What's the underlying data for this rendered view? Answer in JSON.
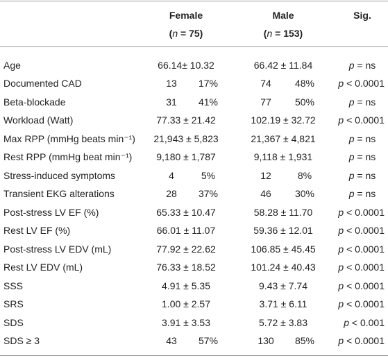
{
  "table": {
    "header": {
      "female": {
        "title": "Female",
        "n": [
          "(",
          "n",
          " = 75)"
        ]
      },
      "male": {
        "title": "Male",
        "n": [
          "(",
          "n",
          " = 153)"
        ]
      },
      "sig": "Sig."
    },
    "rows": [
      {
        "label": "Age",
        "female": [
          "66.14± 10.32"
        ],
        "male": [
          "66.42 ± 11.84"
        ],
        "sig": [
          "p",
          " = ns"
        ]
      },
      {
        "label": "Documented CAD",
        "female": [
          "13",
          "17%"
        ],
        "male": [
          "74",
          "48%"
        ],
        "sig": [
          "p",
          " < 0.0001"
        ]
      },
      {
        "label": "Beta-blockade",
        "female": [
          "31",
          "41%"
        ],
        "male": [
          "77",
          "50%"
        ],
        "sig": [
          "p",
          " = ns"
        ]
      },
      {
        "label": "Workload (Watt)",
        "female": [
          "77.33 ± 21.42"
        ],
        "male": [
          "102.19 ± 32.72"
        ],
        "sig": [
          "p",
          " < 0.0001"
        ]
      },
      {
        "label": "Max RPP (mmHg beats min⁻¹)",
        "female": [
          "21,943 ± 5,823"
        ],
        "male": [
          "21,367 ± 4,821"
        ],
        "sig": [
          "p",
          " = ns"
        ]
      },
      {
        "label": "Rest RPP (mmHg beat min⁻¹)",
        "female": [
          "9,180 ± 1,787"
        ],
        "male": [
          "9,118 ± 1,931"
        ],
        "sig": [
          "p",
          " = ns"
        ]
      },
      {
        "label": "Stress-induced symptoms",
        "female": [
          "4",
          "5%"
        ],
        "male": [
          "12",
          "8%"
        ],
        "sig": [
          "p",
          " = ns"
        ]
      },
      {
        "label": "Transient EKG alterations",
        "female": [
          "28",
          "37%"
        ],
        "male": [
          "46",
          "30%"
        ],
        "sig": [
          "p",
          " = ns"
        ]
      },
      {
        "label": "Post-stress LV EF (%)",
        "female": [
          "65.33 ± 10.47"
        ],
        "male": [
          "58.28 ± 11.70"
        ],
        "sig": [
          "p",
          " < 0.0001"
        ]
      },
      {
        "label": "Rest LV EF (%)",
        "female": [
          "66.01 ± 11.07"
        ],
        "male": [
          "59.36 ± 12.01"
        ],
        "sig": [
          "p",
          " < 0.0001"
        ]
      },
      {
        "label": "Post-stress LV EDV (mL)",
        "female": [
          "77.92 ± 22.62"
        ],
        "male": [
          "106.85 ± 45.45"
        ],
        "sig": [
          "p",
          " < 0.0001"
        ]
      },
      {
        "label": "Rest LV EDV (mL)",
        "female": [
          "76.33 ± 18.52"
        ],
        "male": [
          "101.24 ± 40.43"
        ],
        "sig": [
          "p",
          " < 0.0001"
        ]
      },
      {
        "label": "SSS",
        "female": [
          "4.91 ± 5.35"
        ],
        "male": [
          "9.43 ± 7.74"
        ],
        "sig": [
          "p",
          " < 0.0001"
        ]
      },
      {
        "label": "SRS",
        "female": [
          "1.00 ± 2.57"
        ],
        "male": [
          "3.71 ± 6.11"
        ],
        "sig": [
          "p",
          " < 0.0001"
        ]
      },
      {
        "label": "SDS",
        "female": [
          "3.91 ± 3.53"
        ],
        "male": [
          "5.72 ± 3.83"
        ],
        "sig": [
          "p",
          " < 0.001"
        ]
      },
      {
        "label": "SDS ≥ 3",
        "female": [
          "43",
          "57%"
        ],
        "male": [
          "130",
          "85%"
        ],
        "sig": [
          "p",
          " < 0.0001"
        ]
      }
    ]
  }
}
